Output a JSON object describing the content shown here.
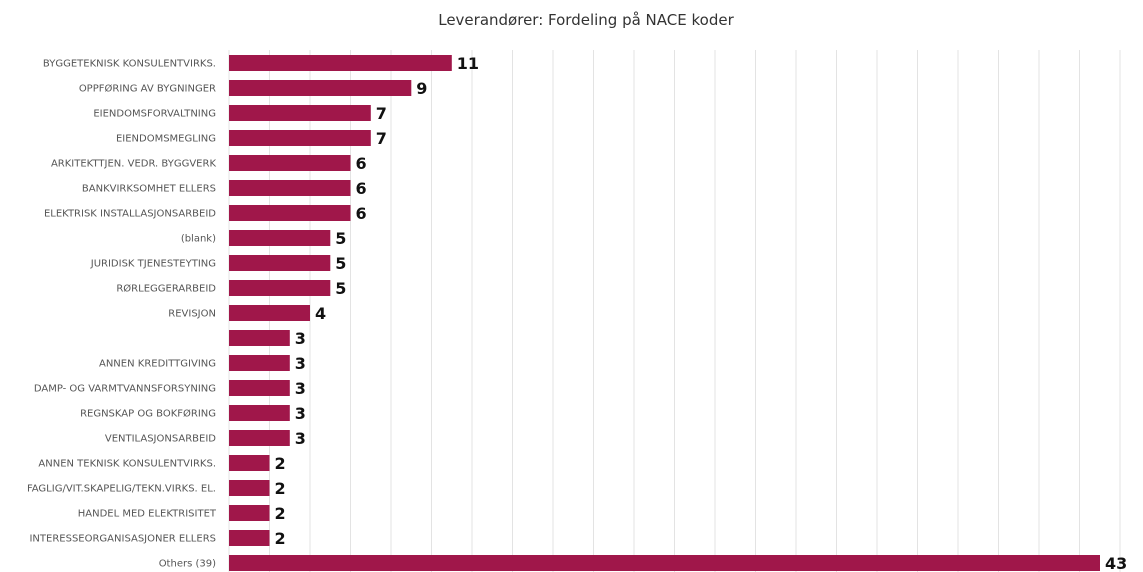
{
  "chart_data": {
    "type": "bar",
    "orientation": "horizontal",
    "title": "Leverandører: Fordeling på NACE koder",
    "xlabel": "",
    "ylabel": "",
    "xlim": [
      0,
      43
    ],
    "grid": true,
    "bar_color": "#a0174a",
    "categories": [
      "BYGGETEKNISK KONSULENTVIRKS.",
      "OPPFØRING AV BYGNINGER",
      "EIENDOMSFORVALTNING",
      "EIENDOMSMEGLING",
      "ARKITEKTTJEN. VEDR. BYGGVERK",
      "BANKVIRKSOMHET ELLERS",
      "ELEKTRISK INSTALLASJONSARBEID",
      "(blank)",
      "JURIDISK TJENESTEYTING",
      "RØRLEGGERARBEID",
      "REVISJON",
      "",
      "ANNEN KREDITTGIVING",
      "DAMP- OG VARMTVANNSFORSYNING",
      "REGNSKAP OG BOKFØRING",
      "VENTILASJONSARBEID",
      "ANNEN TEKNISK KONSULENTVIRKS.",
      "FAGLIG/VIT.SKAPELIG/TEKN.VIRKS. EL.",
      "HANDEL MED ELEKTRISITET",
      "INTERESSEORGANISASJONER ELLERS",
      "Others (39)"
    ],
    "values": [
      11,
      9,
      7,
      7,
      6,
      6,
      6,
      5,
      5,
      5,
      4,
      3,
      3,
      3,
      3,
      3,
      2,
      2,
      2,
      2,
      43
    ]
  }
}
